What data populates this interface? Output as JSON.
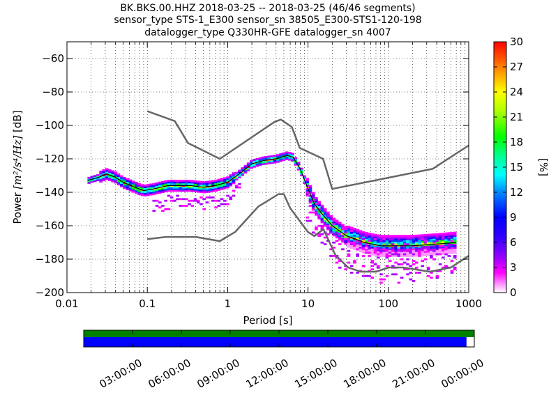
{
  "title": {
    "line1": "BK.BKS.00.HHZ   2018-03-25 -- 2018-03-25  (46/46 segments)",
    "line2": "sensor_type STS-1_E300 sensor_sn 38505_E300-STS1-120-198",
    "line3": "datalogger_type Q330HR-GFE datalogger_sn 4007"
  },
  "chart_data": {
    "type": "heatmap",
    "xlabel": "Period [s]",
    "ylabel_prefix": "Power ",
    "ylabel_unit": "[m²/s⁴/Hz]",
    "ylabel_suffix": " [dB]",
    "xscale": "log",
    "xlim": [
      0.01,
      1000
    ],
    "ylim": [
      -200,
      -50
    ],
    "x_ticks": [
      0.01,
      0.1,
      1,
      10,
      100,
      1000
    ],
    "x_tick_labels": [
      "0.01",
      "0.1",
      "1",
      "10",
      "100",
      "1000"
    ],
    "y_ticks": [
      -200,
      -180,
      -160,
      -140,
      -120,
      -100,
      -80,
      -60
    ],
    "y_tick_labels": [
      "−200",
      "−180",
      "−160",
      "−140",
      "−120",
      "−100",
      "−80",
      "−60"
    ],
    "grid": "dotted",
    "noise_model_high": {
      "x": [
        0.1,
        0.22,
        0.32,
        0.8,
        3.8,
        4.6,
        6.3,
        7.9,
        15.4,
        20,
        354.8,
        1000
      ],
      "y": [
        -91.5,
        -97.4,
        -110.5,
        -120,
        -98,
        -96.5,
        -101,
        -113.5,
        -120,
        -138,
        -126,
        -112
      ]
    },
    "noise_model_low": {
      "x": [
        0.1,
        0.17,
        0.4,
        0.8,
        1.24,
        2.4,
        4.3,
        5,
        6,
        10,
        12,
        15.6,
        21.9,
        31.6,
        45,
        70,
        101,
        154,
        328,
        600,
        1000
      ],
      "y": [
        -168,
        -166.7,
        -166.7,
        -169.2,
        -163.7,
        -148.6,
        -141.1,
        -141.1,
        -149.4,
        -163.8,
        -166.2,
        -162.1,
        -177.5,
        -185,
        -187.5,
        -187.5,
        -185,
        -185,
        -187.5,
        -185,
        -178
      ]
    },
    "mode_curve": {
      "x": [
        0.018,
        0.025,
        0.031,
        0.04,
        0.05,
        0.07,
        0.09,
        0.12,
        0.18,
        0.25,
        0.35,
        0.5,
        0.7,
        1.0,
        1.4,
        2.0,
        2.8,
        4.0,
        5.5,
        6.5,
        8,
        10,
        12,
        15,
        20,
        30,
        50,
        80,
        120,
        200,
        400,
        700
      ],
      "y": [
        -133,
        -131,
        -129,
        -131,
        -134,
        -137,
        -139,
        -138,
        -136,
        -136,
        -136,
        -137,
        -136,
        -134,
        -129,
        -123,
        -121,
        -120,
        -118,
        -119,
        -126,
        -138,
        -147,
        -153,
        -160,
        -166,
        -170,
        -172,
        -172,
        -172,
        -171,
        -170
      ]
    },
    "colorbar": {
      "label": "[%]",
      "range": [
        0,
        30
      ],
      "ticks": [
        "0",
        "3",
        "6",
        "9",
        "12",
        "15",
        "18",
        "21",
        "24",
        "27",
        "30"
      ]
    },
    "coverage": {
      "time_labels": [
        "03:00:00",
        "06:00:00",
        "09:00:00",
        "12:00:00",
        "15:00:00",
        "18:00:00",
        "21:00:00",
        "00:00:00"
      ],
      "data_fraction": 0.98,
      "colors": {
        "availability": "#008000",
        "used": "#0000ff"
      }
    }
  }
}
